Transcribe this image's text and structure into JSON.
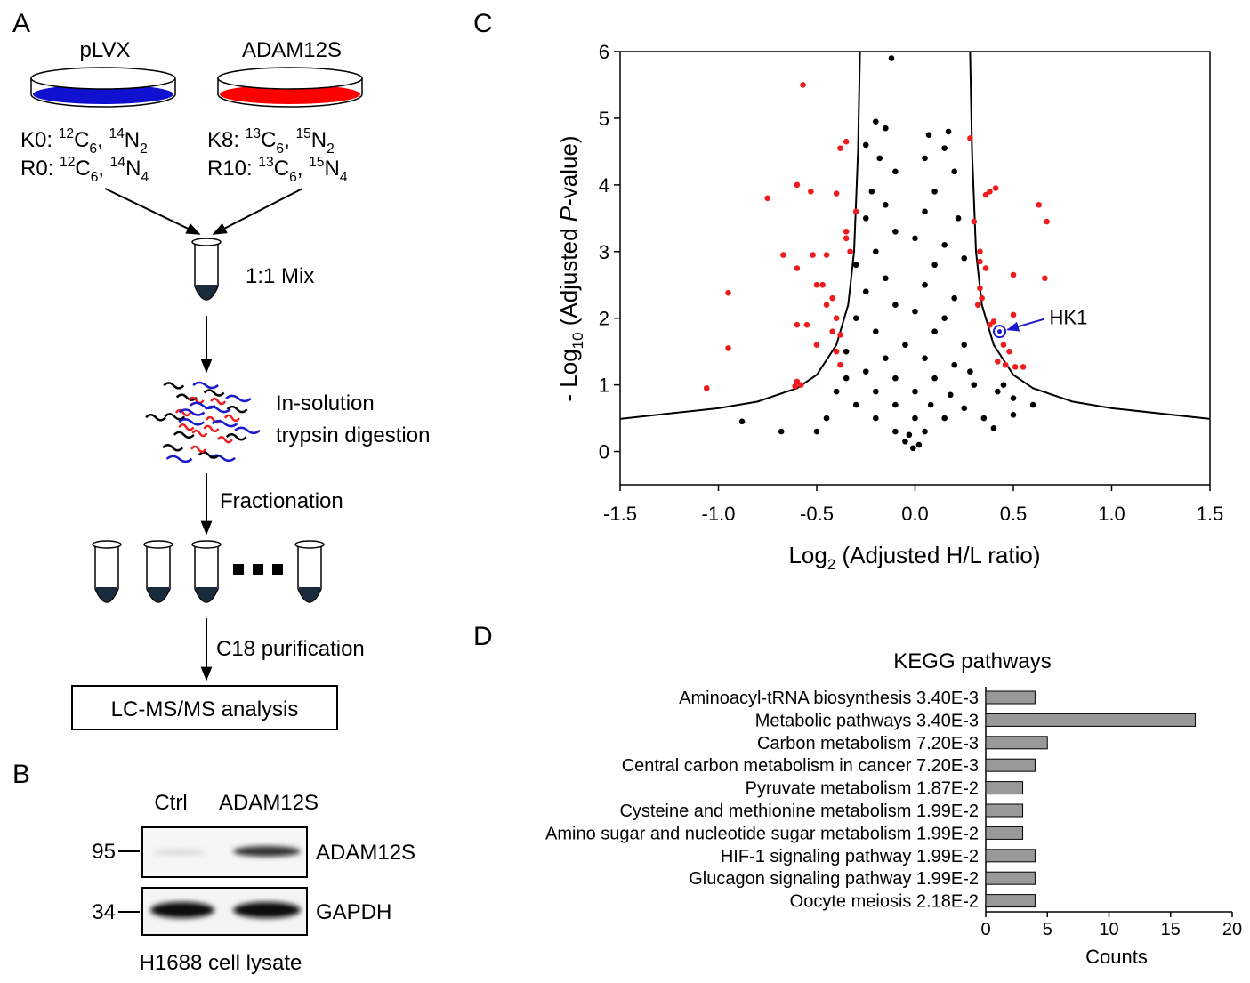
{
  "diagram": {
    "panel_labels": [
      "A",
      "B",
      "C",
      "D"
    ],
    "dishes": [
      {
        "name": "pLVX",
        "color": "#1010d0",
        "lines": [
          [
            "K0: ",
            "12",
            "C",
            "6",
            ", ",
            "14",
            "N",
            "2"
          ],
          [
            "R0: ",
            "12",
            "C",
            "6",
            ", ",
            "14",
            "N",
            "4"
          ]
        ]
      },
      {
        "name": "ADAM12S",
        "color": "#ff0000",
        "lines": [
          [
            "K8: ",
            "13",
            "C",
            "6",
            ", ",
            "15",
            "N",
            "2"
          ],
          [
            "R10: ",
            "13",
            "C",
            "6",
            ", ",
            "15",
            "N",
            "4"
          ]
        ]
      }
    ],
    "steps": {
      "mix": "1:1 Mix",
      "digestion": [
        "In-solution",
        "trypsin digestion"
      ],
      "fractionation": "Fractionation",
      "purification": "C18 purification",
      "analysis": "LC-MS/MS analysis"
    }
  },
  "blot": {
    "lanes": [
      "Ctrl",
      "ADAM12S"
    ],
    "markers": [
      "95",
      "34"
    ],
    "proteins": [
      "ADAM12S",
      "GAPDH"
    ],
    "caption": "H1688 cell lysate"
  },
  "chart_data": [
    {
      "type": "scatter",
      "xlabel": [
        "Log",
        "2",
        " (Adjusted H/L ratio)"
      ],
      "ylabel": [
        "- Log",
        "10",
        " (Adjusted ",
        "P",
        "-value)"
      ],
      "xlim": [
        -1.5,
        1.5
      ],
      "xticks": [
        -1.5,
        {
          "value": -1,
          "label": "-1.0"
        },
        -0.5,
        {
          "value": 0,
          "label": "0.0"
        },
        0.5,
        {
          "value": 1,
          "label": "1.0"
        },
        1.5
      ],
      "ylim": [
        -0.5,
        6
      ],
      "yticks": [
        0,
        1,
        2,
        3,
        4,
        5,
        6
      ],
      "series": [
        {
          "color": "#000000",
          "line": true,
          "x": [
            -1.5,
            -1.0,
            -0.8,
            -0.6,
            -0.5,
            -0.4,
            -0.34,
            -0.31,
            -0.29,
            -0.28,
            0,
            0.28,
            0.29,
            0.31,
            0.34,
            0.4,
            0.5,
            0.6,
            0.8,
            1.0,
            1.5
          ],
          "values": [
            0.49,
            0.65,
            0.75,
            0.95,
            1.15,
            1.6,
            2.2,
            3.0,
            4.5,
            6,
            null,
            6,
            4.5,
            3.0,
            2.2,
            1.6,
            1.15,
            0.95,
            0.75,
            0.65,
            0.49
          ]
        },
        {
          "color": "#000000",
          "x": [
            -0.12,
            -0.2,
            -0.15,
            0.07,
            0.17,
            -0.25,
            -0.18,
            0.15,
            0.05,
            -0.1,
            0.2,
            -0.22,
            0.1,
            -0.15,
            0.05,
            -0.25,
            0.22,
            -0.1,
            0.0,
            0.15,
            -0.2,
            0.25,
            -0.3,
            0.1,
            -0.15,
            0.05,
            -0.25,
            0.2,
            -0.1,
            0.0,
            -0.3,
            0.15,
            -0.2,
            0.1,
            -0.05,
            0.25,
            -0.35,
            -0.15,
            0.05,
            0.2,
            -0.25,
            -0.1,
            0.1,
            0.3,
            -0.4,
            -0.2,
            0.0,
            0.18,
            -0.3,
            -0.1,
            0.08,
            0.25,
            -0.45,
            -0.2,
            0.0,
            0.15,
            0.35,
            -0.1,
            -0.03,
            0.05,
            -0.01,
            0.02,
            -0.05,
            -0.88,
            -0.68,
            0.6,
            0.5,
            0.45,
            0.42,
            -0.5,
            0.4,
            0.5,
            -0.35,
            0.28
          ],
          "values": [
            5.9,
            4.95,
            4.85,
            4.75,
            4.8,
            4.6,
            4.4,
            4.55,
            4.4,
            4.2,
            4.2,
            3.9,
            3.9,
            3.7,
            3.6,
            3.5,
            3.5,
            3.3,
            3.2,
            3.1,
            3.0,
            2.9,
            2.8,
            2.8,
            2.6,
            2.5,
            2.4,
            2.3,
            2.2,
            2.1,
            2.0,
            2.0,
            1.8,
            1.8,
            1.6,
            1.6,
            1.5,
            1.4,
            1.4,
            1.3,
            1.2,
            1.1,
            1.1,
            1.0,
            0.9,
            0.9,
            0.9,
            0.85,
            0.7,
            0.7,
            0.7,
            0.65,
            0.5,
            0.5,
            0.5,
            0.5,
            0.5,
            0.3,
            0.25,
            0.3,
            0.05,
            0.1,
            0.15,
            0.45,
            0.3,
            0.7,
            0.8,
            1.0,
            0.9,
            0.3,
            0.35,
            0.55,
            1.1,
            1.2
          ]
        },
        {
          "color": "#ee1c1c",
          "x": [
            -0.57,
            -0.35,
            -0.38,
            -0.6,
            -0.75,
            -0.53,
            -0.4,
            -0.3,
            -0.35,
            -0.35,
            -0.33,
            -0.67,
            -0.52,
            -0.45,
            -0.6,
            -0.47,
            -0.5,
            -0.42,
            -0.95,
            -0.45,
            -0.4,
            -0.6,
            -0.55,
            -0.42,
            -0.38,
            -0.5,
            -0.4,
            -0.38,
            -0.6,
            -0.58,
            -0.61,
            -0.95,
            -1.06,
            0.28,
            0.38,
            0.41,
            0.36,
            0.63,
            0.67,
            0.3,
            0.33,
            0.33,
            0.36,
            0.5,
            0.66,
            0.33,
            0.34,
            0.32,
            0.4,
            0.38,
            0.45,
            0.48,
            0.42,
            0.46,
            0.51,
            0.55,
            0.5
          ],
          "values": [
            5.5,
            4.65,
            4.55,
            4.0,
            3.8,
            3.9,
            3.87,
            3.6,
            3.3,
            3.2,
            3.0,
            2.95,
            2.95,
            2.95,
            2.75,
            2.5,
            2.5,
            2.3,
            2.38,
            2.2,
            2.0,
            1.9,
            1.9,
            1.8,
            1.75,
            1.6,
            1.5,
            1.3,
            1.05,
            1.0,
            0.98,
            1.55,
            0.95,
            4.7,
            3.9,
            3.95,
            3.85,
            3.7,
            3.45,
            3.45,
            3.0,
            2.85,
            2.75,
            2.65,
            2.6,
            2.45,
            2.3,
            2.2,
            1.95,
            1.9,
            1.6,
            1.5,
            1.35,
            1.3,
            1.27,
            1.27,
            2.05
          ]
        }
      ],
      "annotation": {
        "text": "HK1",
        "x": 0.43,
        "y": 1.8,
        "color": "#1a1acc"
      }
    },
    {
      "type": "hbar",
      "title": "KEGG pathways",
      "xlabel": "Counts",
      "categories": [
        "Aminoacyl-tRNA biosynthesis 3.40E-3",
        "Metabolic pathways 3.40E-3",
        "Carbon metabolism 7.20E-3",
        "Central carbon metabolism in cancer 7.20E-3",
        "Pyruvate metabolism 1.87E-2",
        "Cysteine and methionine metabolism 1.99E-2",
        "Amino sugar and nucleotide sugar metabolism 1.99E-2",
        "HIF-1 signaling pathway 1.99E-2",
        "Glucagon signaling pathway 1.99E-2",
        "Oocyte meiosis 2.18E-2"
      ],
      "values": [
        4,
        17,
        5,
        4,
        3,
        3,
        3,
        4,
        4,
        4
      ],
      "color": "#999999",
      "xlim": [
        0,
        20
      ],
      "xticks": [
        0,
        5,
        10,
        15,
        20
      ]
    }
  ]
}
